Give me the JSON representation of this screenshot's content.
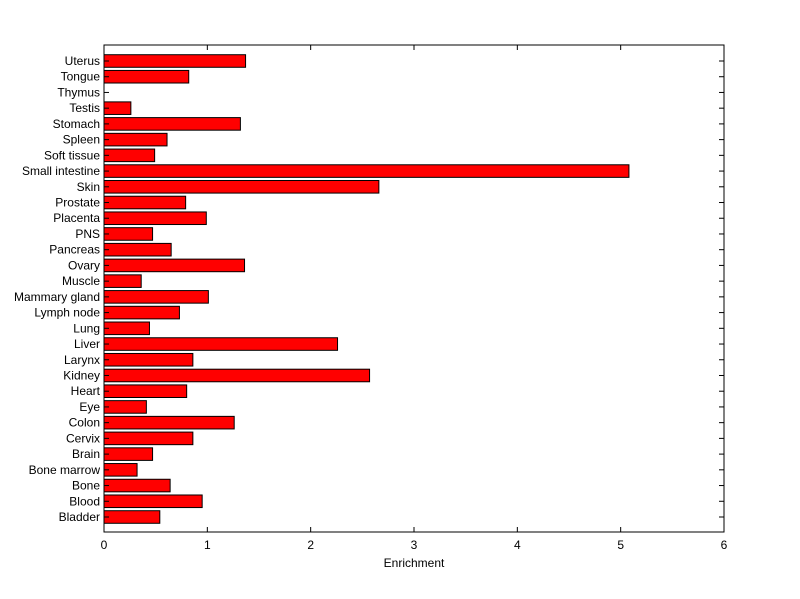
{
  "chart_data": {
    "type": "bar",
    "orientation": "horizontal",
    "categories": [
      "Uterus",
      "Tongue",
      "Thymus",
      "Testis",
      "Stomach",
      "Spleen",
      "Soft tissue",
      "Small intestine",
      "Skin",
      "Prostate",
      "Placenta",
      "PNS",
      "Pancreas",
      "Ovary",
      "Muscle",
      "Mammary gland",
      "Lymph node",
      "Lung",
      "Liver",
      "Larynx",
      "Kidney",
      "Heart",
      "Eye",
      "Colon",
      "Cervix",
      "Brain",
      "Bone marrow",
      "Bone",
      "Blood",
      "Bladder"
    ],
    "values": [
      1.37,
      0.82,
      0.0,
      0.26,
      1.32,
      0.61,
      0.49,
      5.08,
      2.66,
      0.79,
      0.99,
      0.47,
      0.65,
      1.36,
      0.36,
      1.01,
      0.73,
      0.44,
      2.26,
      0.86,
      2.57,
      0.8,
      0.41,
      1.26,
      0.86,
      0.47,
      0.32,
      0.64,
      0.95,
      0.54
    ],
    "title": "",
    "xlabel": "Enrichment",
    "ylabel": "",
    "xlim": [
      0,
      6
    ],
    "xticks": [
      0,
      1,
      2,
      3,
      4,
      5,
      6
    ],
    "bar_color": "#ff0000",
    "grid": false
  }
}
